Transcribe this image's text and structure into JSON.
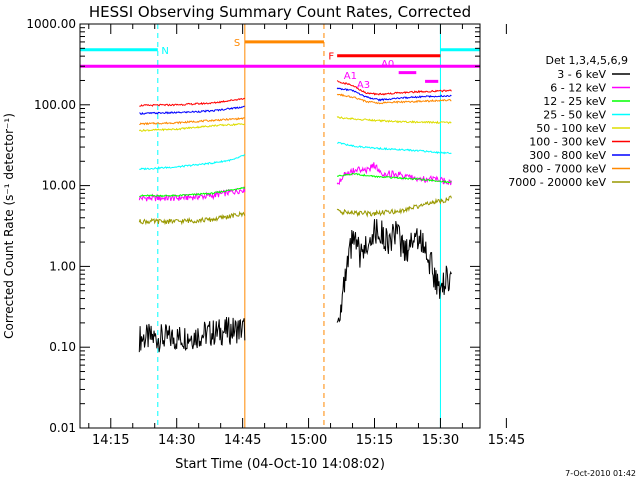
{
  "chart_data": {
    "type": "line",
    "title": "HESSI Observing Summary Count Rates, Corrected",
    "xlabel": "Start Time (04-Oct-10 14:08:02)",
    "ylabel": "Corrected Count Rate (s⁻¹ detector⁻¹)",
    "yscale": "log",
    "ylim": [
      0.01,
      1000
    ],
    "xlim_minutes": [
      8.0,
      99.0
    ],
    "x_ticks": [
      {
        "label": "14:15",
        "t": 15
      },
      {
        "label": "14:30",
        "t": 30
      },
      {
        "label": "14:45",
        "t": 45
      },
      {
        "label": "15:00",
        "t": 60
      },
      {
        "label": "15:15",
        "t": 75
      },
      {
        "label": "15:30",
        "t": 90
      },
      {
        "label": "15:45",
        "t": 105
      }
    ],
    "y_ticks": [
      {
        "label": "0.01",
        "v": 0.01
      },
      {
        "label": "0.10",
        "v": 0.1
      },
      {
        "label": "1.00",
        "v": 1
      },
      {
        "label": "10.00",
        "v": 10
      },
      {
        "label": "100.00",
        "v": 100
      },
      {
        "label": "1000.00",
        "v": 1000
      }
    ],
    "legend_title": "Det 1,3,4,5,6,9",
    "legend_position": "right",
    "segments": [
      {
        "t0": 21.5,
        "t1": 45.5
      },
      {
        "t0": 66.5,
        "t1": 92.5
      }
    ],
    "series": [
      {
        "name": "3 - 6 keV",
        "color": "#000000",
        "values": [
          [
            21.5,
            0.13
          ],
          [
            30,
            0.13
          ],
          [
            38,
            0.15
          ],
          [
            45.5,
            0.17
          ],
          [
            66.5,
            0.2
          ],
          [
            68,
            0.5
          ],
          [
            70,
            2.2
          ],
          [
            72,
            1.3
          ],
          [
            74,
            2.5
          ],
          [
            76,
            2.8
          ],
          [
            78,
            2.0
          ],
          [
            80,
            2.5
          ],
          [
            82,
            1.5
          ],
          [
            84,
            2.4
          ],
          [
            86,
            2.0
          ],
          [
            88,
            1.0
          ],
          [
            89.5,
            0.55
          ],
          [
            92.5,
            0.8
          ]
        ]
      },
      {
        "name": "6 - 12 keV",
        "color": "#ff00ff",
        "values": [
          [
            21.5,
            7.0
          ],
          [
            30,
            7.0
          ],
          [
            38,
            7.5
          ],
          [
            45.5,
            9.0
          ],
          [
            66.5,
            10
          ],
          [
            68,
            14
          ],
          [
            71,
            16
          ],
          [
            73,
            15
          ],
          [
            75,
            18
          ],
          [
            77,
            14
          ],
          [
            79,
            14
          ],
          [
            82,
            13
          ],
          [
            85,
            12
          ],
          [
            88,
            12
          ],
          [
            92.5,
            11
          ]
        ]
      },
      {
        "name": "12 - 25 keV",
        "color": "#00ff00",
        "values": [
          [
            21.5,
            7.5
          ],
          [
            30,
            7.5
          ],
          [
            38,
            8.0
          ],
          [
            45.5,
            9.5
          ],
          [
            66.5,
            13
          ],
          [
            70,
            14
          ],
          [
            75,
            13
          ],
          [
            80,
            12.5
          ],
          [
            85,
            12
          ],
          [
            92.5,
            11
          ]
        ]
      },
      {
        "name": "25 - 50 keV",
        "color": "#00ffff",
        "values": [
          [
            21.5,
            16
          ],
          [
            30,
            17
          ],
          [
            38,
            19
          ],
          [
            43,
            21
          ],
          [
            45.5,
            24
          ],
          [
            66.5,
            34
          ],
          [
            70,
            31
          ],
          [
            75,
            29
          ],
          [
            80,
            28
          ],
          [
            85,
            27
          ],
          [
            92.5,
            25
          ]
        ]
      },
      {
        "name": "50 - 100 keV",
        "color": "#dddd00",
        "values": [
          [
            21.5,
            48
          ],
          [
            30,
            50
          ],
          [
            38,
            55
          ],
          [
            45.5,
            58
          ],
          [
            66.5,
            70
          ],
          [
            70,
            67
          ],
          [
            75,
            64
          ],
          [
            80,
            62
          ],
          [
            85,
            61
          ],
          [
            92.5,
            60
          ]
        ]
      },
      {
        "name": "100 - 300 keV",
        "color": "#ff0000",
        "values": [
          [
            21.5,
            98
          ],
          [
            30,
            100
          ],
          [
            38,
            105
          ],
          [
            45.5,
            120
          ],
          [
            66.5,
            195
          ],
          [
            70,
            175
          ],
          [
            73,
            140
          ],
          [
            76,
            135
          ],
          [
            80,
            140
          ],
          [
            85,
            145
          ],
          [
            92.5,
            150
          ]
        ]
      },
      {
        "name": "300 - 800 keV",
        "color": "#0000ff",
        "values": [
          [
            21.5,
            78
          ],
          [
            30,
            80
          ],
          [
            38,
            84
          ],
          [
            45.5,
            95
          ],
          [
            66.5,
            160
          ],
          [
            70,
            150
          ],
          [
            73,
            125
          ],
          [
            76,
            115
          ],
          [
            80,
            120
          ],
          [
            85,
            125
          ],
          [
            92.5,
            130
          ]
        ]
      },
      {
        "name": "800 - 7000 keV",
        "color": "#ff8800",
        "values": [
          [
            21.5,
            58
          ],
          [
            30,
            60
          ],
          [
            38,
            64
          ],
          [
            45.5,
            68
          ],
          [
            66.5,
            135
          ],
          [
            70,
            125
          ],
          [
            73,
            110
          ],
          [
            76,
            105
          ],
          [
            80,
            108
          ],
          [
            85,
            110
          ],
          [
            92.5,
            115
          ]
        ]
      },
      {
        "name": "7000 - 20000 keV",
        "color": "#999900",
        "values": [
          [
            21.5,
            3.6
          ],
          [
            30,
            3.6
          ],
          [
            38,
            3.8
          ],
          [
            45.5,
            4.5
          ],
          [
            66.5,
            4.8
          ],
          [
            70,
            4.6
          ],
          [
            75,
            4.5
          ],
          [
            80,
            4.8
          ],
          [
            85,
            5.5
          ],
          [
            92.5,
            7.0
          ]
        ]
      }
    ],
    "markers": [
      {
        "label": "N",
        "color": "#00ffff",
        "t0": 8.0,
        "t1": 25.7,
        "level": 480
      },
      {
        "label": "",
        "color": "#00ffff",
        "t0": 90.0,
        "t1": 99.0,
        "level": 480
      },
      {
        "label": "S",
        "color": "#ff8800",
        "t0": 45.5,
        "t1": 63.5,
        "level": 600
      },
      {
        "label": "F",
        "color": "#ff0000",
        "t0": 66.5,
        "t1": 90.0,
        "level": 405
      },
      {
        "label": "",
        "color": "#ff00ff",
        "t0": 8.0,
        "t1": 99.0,
        "level": 300
      },
      {
        "label": "A0",
        "color": "#ff00ff",
        "t0": 0,
        "t1": 0,
        "level": 330
      },
      {
        "label": "A1",
        "color": "#ff00ff",
        "t0": 0,
        "t1": 0,
        "level": 235
      },
      {
        "label": "A3",
        "color": "#ff00ff",
        "t0": 0,
        "t1": 0,
        "level": 180
      }
    ],
    "attenuator_bars": [
      {
        "color": "#ff00ff",
        "t0": 80.5,
        "t1": 84.5,
        "level": 250
      },
      {
        "color": "#ff00ff",
        "t0": 86.5,
        "t1": 89.5,
        "level": 195
      }
    ],
    "vertical_lines": [
      {
        "t": 8.0,
        "color": "#00ffff",
        "dashed": false
      },
      {
        "t": 25.7,
        "color": "#00ffff",
        "dashed": true
      },
      {
        "t": 45.5,
        "color": "#ff8800",
        "dashed": false
      },
      {
        "t": 63.5,
        "color": "#ff8800",
        "dashed": true
      },
      {
        "t": 90.0,
        "color": "#00ffff",
        "dashed": false
      },
      {
        "t": 99.0,
        "color": "#00ffff",
        "dashed": true
      }
    ],
    "footer_date": "7-Oct-2010 01:42"
  }
}
